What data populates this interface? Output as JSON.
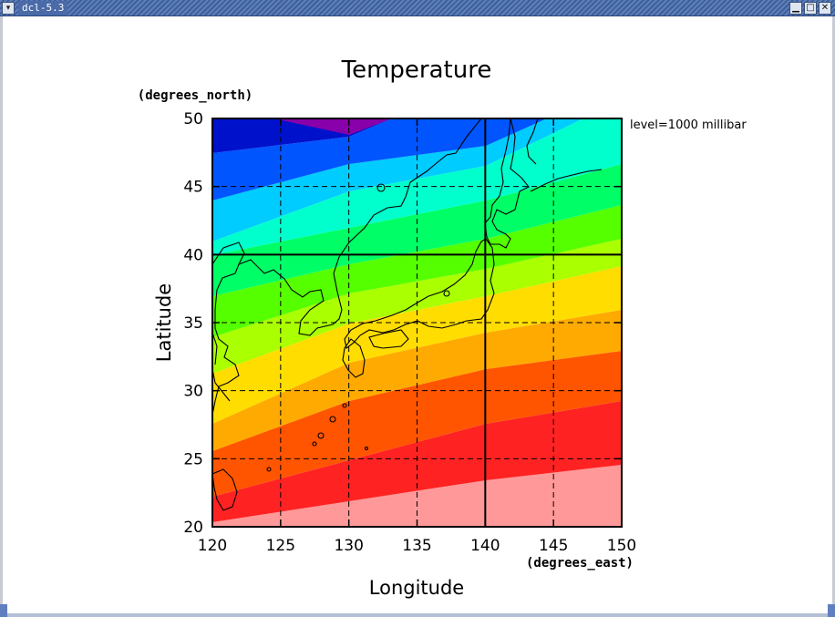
{
  "window": {
    "title": "dcl-5.3",
    "menu_icon": "chevron-down-icon",
    "minimize_icon": "minimize-icon",
    "maximize_icon": "maximize-icon",
    "close_icon": "close-icon"
  },
  "chart_data": {
    "type": "heatmap",
    "title": "Temperature",
    "xlabel": "Longitude",
    "ylabel": "Latitude",
    "x_units": "(degrees_east)",
    "y_units": "(degrees_north)",
    "level_label": "level=1000 millibar",
    "xlim": [
      120,
      150
    ],
    "ylim": [
      20,
      50
    ],
    "x_ticks": [
      "120",
      "125",
      "130",
      "135",
      "140",
      "145",
      "150"
    ],
    "y_ticks": [
      "20",
      "25",
      "30",
      "35",
      "40",
      "45",
      "50"
    ],
    "grid": "dashed every 5 degrees, solid at 40N and 140E",
    "colors": [
      "#ff9999",
      "#ff2222",
      "#ff5500",
      "#ffaa00",
      "#ffdd00",
      "#aaff00",
      "#55ff00",
      "#00ff66",
      "#00ffcc",
      "#00ccff",
      "#0055ff",
      "#0011cc",
      "#8800aa"
    ]
  }
}
